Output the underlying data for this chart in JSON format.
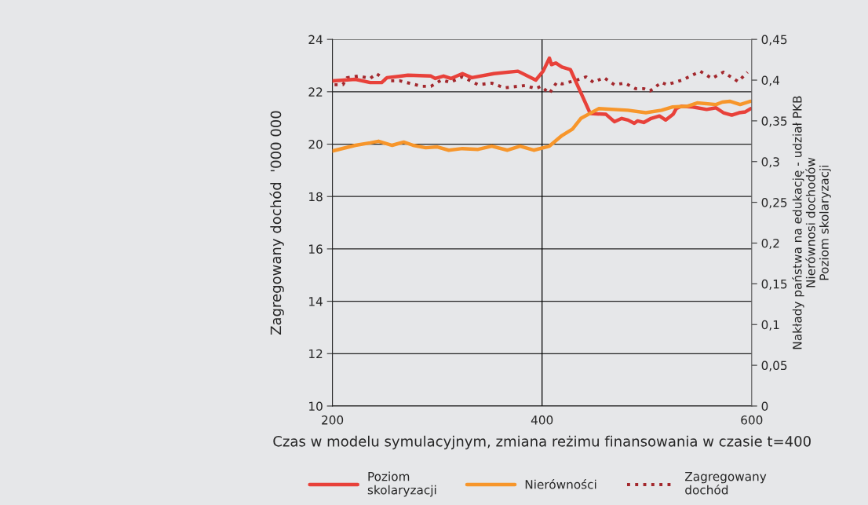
{
  "chart_data": {
    "type": "line",
    "xlabel": "Czas w modelu symulacyjnym, zmiana reżimu finansowania w czasie t=400",
    "ylabel": "Zagregowany dochód  '000 000",
    "y2label": "Nakłady państwa na edukację - udział PKB\nNierównosi dochodów\nPoziom skolaryzacji",
    "xlim": [
      200,
      600
    ],
    "xticks": [
      200,
      400,
      600
    ],
    "ylim": [
      10,
      24
    ],
    "yticks": [
      10,
      12,
      14,
      16,
      18,
      20,
      22,
      24
    ],
    "y2lim": [
      0,
      0.45
    ],
    "y2ticks": [
      {
        "value": 0,
        "label": "0"
      },
      {
        "value": 0.05,
        "label": "0,05"
      },
      {
        "value": 0.1,
        "label": "0,1"
      },
      {
        "value": 0.15,
        "label": "0,15"
      },
      {
        "value": 0.2,
        "label": "0,2"
      },
      {
        "value": 0.25,
        "label": "0,25"
      },
      {
        "value": 0.3,
        "label": "0,3"
      },
      {
        "value": 0.35,
        "label": "0,35"
      },
      {
        "value": 0.4,
        "label": "0,4"
      },
      {
        "value": 0.45,
        "label": "0,45"
      }
    ],
    "grid": "y",
    "legend": "bottom",
    "ref_lines": [
      {
        "axis": "x",
        "value": 400,
        "color": "#000000"
      }
    ],
    "series": [
      {
        "name": "Poziom\nskolaryzacji",
        "color": "#e8413a",
        "axis": "y2",
        "line_style": "solid",
        "x": [
          200,
          222,
          236,
          247,
          252,
          272,
          294,
          298,
          306,
          313,
          324,
          333,
          354,
          377,
          394,
          401,
          407,
          409,
          413,
          419,
          427,
          446,
          461,
          469,
          476,
          482,
          488,
          491,
          497,
          504,
          512,
          518,
          525,
          528,
          533,
          544,
          557,
          566,
          573,
          581,
          588,
          594,
          599
        ],
        "values": [
          0.399,
          0.401,
          0.397,
          0.397,
          0.403,
          0.406,
          0.405,
          0.402,
          0.405,
          0.402,
          0.408,
          0.403,
          0.408,
          0.411,
          0.4,
          0.411,
          0.427,
          0.419,
          0.421,
          0.416,
          0.413,
          0.359,
          0.358,
          0.349,
          0.353,
          0.351,
          0.347,
          0.35,
          0.348,
          0.353,
          0.356,
          0.351,
          0.358,
          0.365,
          0.368,
          0.367,
          0.364,
          0.366,
          0.36,
          0.357,
          0.36,
          0.361,
          0.365
        ]
      },
      {
        "name": "Nierówności",
        "color": "#f7962b",
        "axis": "y2",
        "line_style": "solid",
        "x": [
          200,
          222,
          236,
          244,
          257,
          268,
          277,
          289,
          300,
          311,
          324,
          339,
          352,
          367,
          379,
          392,
          407,
          419,
          429,
          437,
          454,
          482,
          499,
          514,
          524,
          539,
          548,
          566,
          572,
          579,
          589,
          599
        ],
        "values": [
          0.313,
          0.32,
          0.323,
          0.325,
          0.32,
          0.324,
          0.32,
          0.317,
          0.318,
          0.314,
          0.316,
          0.315,
          0.319,
          0.314,
          0.319,
          0.314,
          0.319,
          0.332,
          0.34,
          0.353,
          0.365,
          0.363,
          0.36,
          0.363,
          0.367,
          0.368,
          0.372,
          0.37,
          0.373,
          0.374,
          0.37,
          0.374
        ]
      },
      {
        "name": "Zagregowany\ndochód",
        "color": "#a3282d",
        "axis": "y",
        "line_style": "dotted",
        "x": [
          202,
          210,
          214,
          225,
          236,
          242,
          252,
          264,
          285,
          294,
          304,
          312,
          324,
          339,
          352,
          364,
          384,
          394,
          399,
          407,
          414,
          419,
          431,
          442,
          449,
          459,
          469,
          479,
          489,
          497,
          503,
          514,
          519,
          534,
          551,
          562,
          573,
          587,
          596
        ],
        "values": [
          22.27,
          22.27,
          22.54,
          22.6,
          22.51,
          22.69,
          22.42,
          22.42,
          22.21,
          22.21,
          22.45,
          22.36,
          22.57,
          22.27,
          22.33,
          22.15,
          22.24,
          22.12,
          22.21,
          21.94,
          22.36,
          22.3,
          22.42,
          22.57,
          22.36,
          22.54,
          22.27,
          22.33,
          22.12,
          22.12,
          22.03,
          22.36,
          22.27,
          22.45,
          22.78,
          22.51,
          22.75,
          22.39,
          22.75
        ]
      }
    ]
  }
}
